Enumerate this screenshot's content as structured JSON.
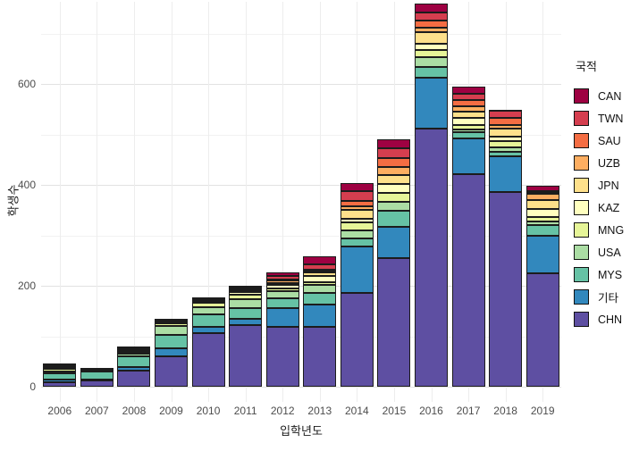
{
  "chart_data": {
    "type": "bar",
    "stacked": true,
    "title": "",
    "xlabel": "입학년도",
    "ylabel": "학생수",
    "legend_title": "국적",
    "legend_position": "right",
    "grid": true,
    "categories": [
      "2006",
      "2007",
      "2008",
      "2009",
      "2010",
      "2011",
      "2012",
      "2013",
      "2014",
      "2015",
      "2016",
      "2017",
      "2018",
      "2019"
    ],
    "ylim": [
      0,
      764
    ],
    "yticks": [
      0,
      200,
      400,
      600
    ],
    "yticks_minor": [
      100,
      300,
      500,
      700
    ],
    "bar_outline_color": "#1c1c1c",
    "series": [
      {
        "name": "CHN",
        "color": "#5E4FA2",
        "values": [
          9,
          12,
          32,
          60,
          106,
          122,
          118,
          119,
          185,
          255,
          512,
          421,
          386,
          225
        ]
      },
      {
        "name": "기타",
        "color": "#3288BD",
        "values": [
          5,
          3,
          7,
          16,
          13,
          12,
          38,
          43,
          92,
          62,
          100,
          71,
          71,
          74
        ]
      },
      {
        "name": "MYS",
        "color": "#66C2A5",
        "values": [
          12,
          15,
          22,
          27,
          25,
          22,
          19,
          24,
          16,
          31,
          21,
          13,
          9,
          21
        ]
      },
      {
        "name": "USA",
        "color": "#ABDDA4",
        "values": [
          4,
          2,
          5,
          18,
          14,
          17,
          14,
          15,
          16,
          18,
          20,
          4,
          9,
          7
        ]
      },
      {
        "name": "MNG",
        "color": "#E6F598",
        "values": [
          6,
          1,
          2,
          4,
          8,
          10,
          5,
          6,
          16,
          18,
          14,
          10,
          12,
          10
        ]
      },
      {
        "name": "KAZ",
        "color": "#FFFFBF",
        "values": [
          2,
          1,
          1,
          2,
          2,
          4,
          8,
          12,
          7,
          18,
          12,
          13,
          9,
          15
        ]
      },
      {
        "name": "JPN",
        "color": "#FEE08B",
        "values": [
          3,
          1,
          2,
          2,
          2,
          2,
          3,
          8,
          18,
          18,
          24,
          13,
          15,
          18
        ]
      },
      {
        "name": "UZB",
        "color": "#FDAE61",
        "values": [
          1,
          0,
          1,
          1,
          1,
          2,
          5,
          2,
          7,
          15,
          8,
          11,
          7,
          12
        ]
      },
      {
        "name": "SAU",
        "color": "#F46D43",
        "values": [
          1,
          0,
          4,
          1,
          1,
          2,
          3,
          2,
          12,
          18,
          14,
          12,
          14,
          4
        ]
      },
      {
        "name": "TWN",
        "color": "#D53E4F",
        "values": [
          1,
          1,
          2,
          2,
          2,
          3,
          7,
          12,
          18,
          20,
          16,
          13,
          15,
          2
        ]
      },
      {
        "name": "CAN",
        "color": "#9E0142",
        "values": [
          2,
          2,
          2,
          2,
          3,
          4,
          6,
          15,
          16,
          17,
          18,
          13,
          2,
          10
        ]
      }
    ],
    "totals": [
      46,
      38,
      80,
      135,
      177,
      200,
      226,
      258,
      403,
      490,
      759,
      594,
      549,
      398
    ],
    "legend_order_top_to_bottom": [
      "CAN",
      "TWN",
      "SAU",
      "UZB",
      "JPN",
      "KAZ",
      "MNG",
      "USA",
      "MYS",
      "기타",
      "CHN"
    ]
  }
}
